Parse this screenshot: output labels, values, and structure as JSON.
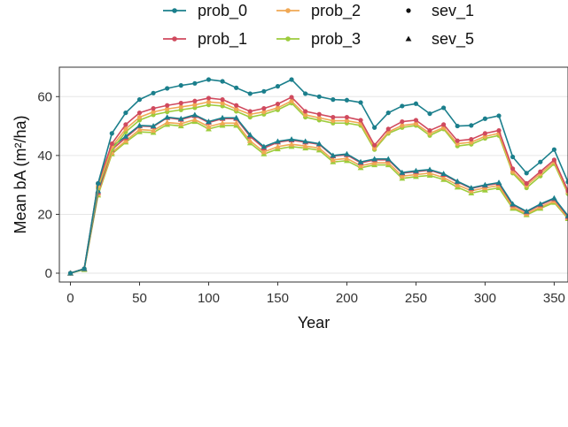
{
  "chart_data": {
    "type": "line",
    "xlabel": "Year",
    "ylabel": "Mean bA (m²/ha)",
    "xlim": [
      -8,
      360
    ],
    "ylim": [
      -3,
      70
    ],
    "xticks": [
      0,
      50,
      100,
      150,
      200,
      250,
      300,
      350
    ],
    "yticks": [
      0,
      20,
      40,
      60
    ],
    "grid": true,
    "legend_position": "top",
    "x": [
      0,
      10,
      20,
      30,
      40,
      50,
      60,
      70,
      80,
      90,
      100,
      110,
      120,
      130,
      140,
      150,
      160,
      170,
      180,
      190,
      200,
      210,
      220,
      230,
      240,
      250,
      260,
      270,
      280,
      290,
      300,
      310,
      320,
      330,
      340,
      350,
      360
    ],
    "color_legend": [
      {
        "name": "prob_0",
        "color": "#1b7f8c"
      },
      {
        "name": "prob_1",
        "color": "#d04a5e"
      },
      {
        "name": "prob_2",
        "color": "#f0a854"
      },
      {
        "name": "prob_3",
        "color": "#9dcc3c"
      }
    ],
    "shape_legend": [
      {
        "name": "sev_1",
        "shape": "circle"
      },
      {
        "name": "sev_5",
        "shape": "triangle"
      }
    ],
    "series": [
      {
        "color_group": "prob_0",
        "shape_group": "sev_1",
        "values": [
          0,
          1.5,
          30.5,
          47.5,
          54.5,
          59,
          61.2,
          62.8,
          63.8,
          64.5,
          65.8,
          65.2,
          63.0,
          61.0,
          61.8,
          63.5,
          65.8,
          61.0,
          60.0,
          59.0,
          58.8,
          58.0,
          49.5,
          54.5,
          56.8,
          57.6,
          54.2,
          56.2,
          50.0,
          50.2,
          52.5,
          53.5,
          39.5,
          34.0,
          37.8,
          42.0,
          31.0
        ]
      },
      {
        "color_group": "prob_1",
        "shape_group": "sev_1",
        "values": [
          0,
          1.5,
          30.5,
          44.0,
          50.5,
          54.5,
          56.0,
          57.0,
          57.8,
          58.5,
          59.5,
          59.0,
          57.0,
          55.0,
          56.0,
          57.5,
          59.8,
          55.0,
          54.0,
          53.0,
          53.0,
          52.0,
          43.5,
          49.0,
          51.5,
          52.0,
          48.5,
          50.5,
          45.0,
          45.5,
          47.5,
          48.5,
          35.5,
          30.5,
          34.5,
          38.5,
          28.0
        ]
      },
      {
        "color_group": "prob_2",
        "shape_group": "sev_1",
        "values": [
          0,
          1.5,
          29.5,
          43.0,
          49.0,
          53.0,
          54.8,
          55.8,
          56.5,
          57.2,
          58.2,
          57.8,
          55.8,
          54.0,
          54.8,
          56.2,
          58.5,
          53.8,
          52.8,
          51.8,
          51.8,
          51.0,
          42.5,
          48.0,
          50.2,
          50.8,
          47.5,
          49.5,
          44.0,
          44.5,
          46.5,
          47.5,
          34.5,
          29.8,
          33.8,
          37.8,
          27.5
        ]
      },
      {
        "color_group": "prob_3",
        "shape_group": "sev_1",
        "values": [
          0,
          1.5,
          29.0,
          42.0,
          48.0,
          52.0,
          53.8,
          54.8,
          55.5,
          56.2,
          57.2,
          56.8,
          55.0,
          53.0,
          54.0,
          55.5,
          57.8,
          53.0,
          52.0,
          51.0,
          51.0,
          50.2,
          42.0,
          47.5,
          49.5,
          50.2,
          46.8,
          49.0,
          43.2,
          43.8,
          45.8,
          46.8,
          34.0,
          29.0,
          33.0,
          37.2,
          27.0
        ]
      },
      {
        "color_group": "prob_0",
        "shape_group": "sev_5",
        "values": [
          0,
          1.5,
          28.0,
          43.0,
          46.5,
          50.2,
          50.0,
          53.0,
          52.5,
          53.8,
          51.5,
          52.8,
          52.8,
          47.0,
          43.0,
          44.8,
          45.5,
          44.8,
          44.0,
          40.0,
          40.5,
          37.8,
          38.8,
          38.8,
          34.2,
          34.8,
          35.2,
          33.8,
          31.2,
          29.0,
          30.0,
          30.8,
          23.5,
          21.0,
          23.5,
          25.5,
          19.5
        ]
      },
      {
        "color_group": "prob_1",
        "shape_group": "sev_5",
        "values": [
          0,
          1.5,
          27.5,
          42.0,
          46.0,
          50.0,
          49.8,
          52.8,
          52.2,
          53.5,
          51.2,
          52.5,
          52.5,
          46.5,
          42.5,
          44.5,
          45.2,
          44.5,
          43.8,
          39.8,
          40.2,
          37.5,
          38.5,
          38.5,
          34.0,
          34.5,
          35.0,
          33.5,
          31.0,
          28.8,
          29.8,
          30.5,
          23.2,
          20.8,
          23.2,
          25.2,
          19.2
        ]
      },
      {
        "color_group": "prob_2",
        "shape_group": "sev_5",
        "values": [
          0,
          1.5,
          27.0,
          41.0,
          45.0,
          48.8,
          48.5,
          51.2,
          50.8,
          52.2,
          49.8,
          51.0,
          51.0,
          45.0,
          41.2,
          43.0,
          43.8,
          43.2,
          42.5,
          38.5,
          39.0,
          36.5,
          37.5,
          37.5,
          33.0,
          33.5,
          34.0,
          32.5,
          30.0,
          28.0,
          29.0,
          29.8,
          22.5,
          20.2,
          22.5,
          24.5,
          18.8
        ]
      },
      {
        "color_group": "prob_3",
        "shape_group": "sev_5",
        "values": [
          0,
          1.2,
          26.5,
          40.5,
          44.5,
          48.0,
          47.8,
          50.5,
          50.0,
          51.5,
          49.0,
          50.2,
          50.2,
          44.2,
          40.5,
          42.2,
          43.0,
          42.5,
          41.8,
          37.8,
          38.2,
          35.8,
          36.8,
          36.8,
          32.2,
          32.8,
          33.2,
          31.8,
          29.2,
          27.2,
          28.2,
          29.0,
          22.0,
          19.8,
          22.0,
          24.0,
          18.5
        ]
      }
    ]
  }
}
